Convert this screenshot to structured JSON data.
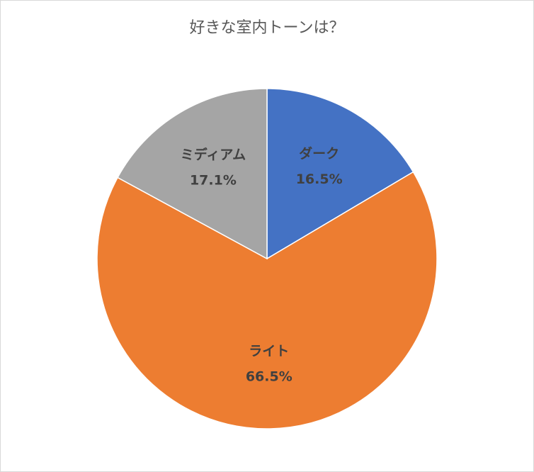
{
  "chart_data": {
    "type": "pie",
    "title": "好きな室内トーンは？",
    "categories": [
      "ダーク",
      "ライト",
      "ミディアム"
    ],
    "values": [
      16.5,
      66.5,
      17.1
    ],
    "value_labels": [
      "16.5%",
      "66.5%",
      "17.1%"
    ],
    "colors": [
      "#4472c4",
      "#ed7d31",
      "#a5a5a5"
    ]
  }
}
